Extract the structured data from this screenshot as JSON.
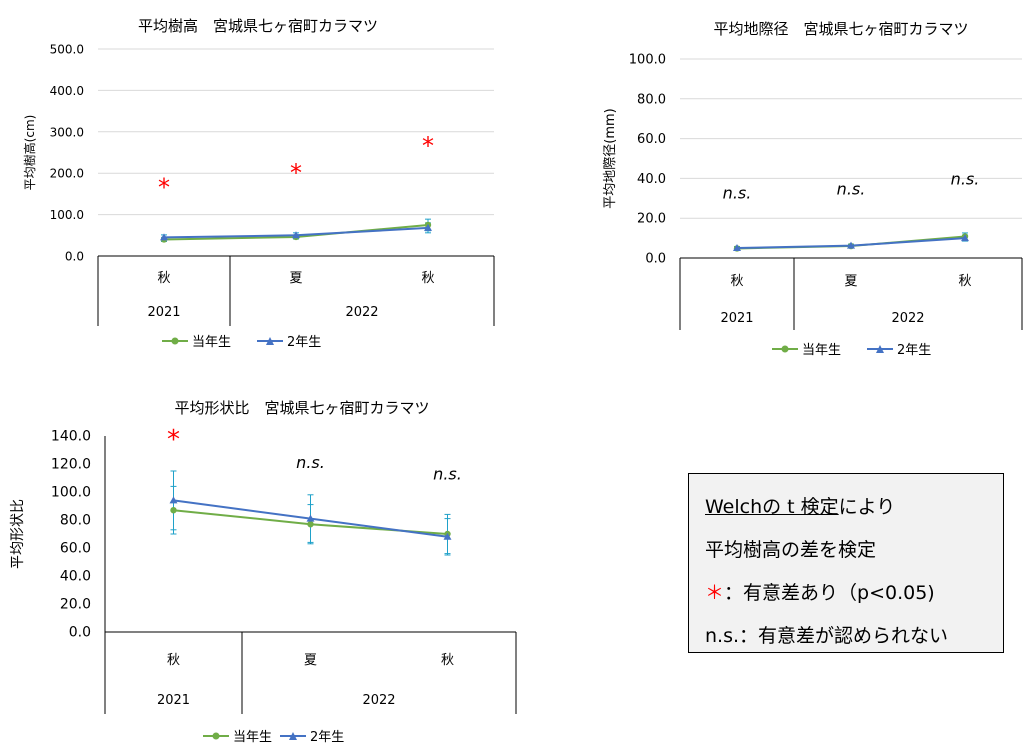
{
  "chart_data": [
    {
      "type": "line",
      "title": "平均樹高　宮城県七ヶ宿町カラマツ",
      "ylabel": "平均樹高(cm)",
      "ylim": [
        0,
        500
      ],
      "yticks": [
        "0.0",
        "100.0",
        "200.0",
        "300.0",
        "400.0",
        "500.0"
      ],
      "categories": [
        "秋",
        "夏",
        "秋"
      ],
      "year_groups": [
        {
          "label": "2021",
          "span": 1
        },
        {
          "label": "2022",
          "span": 2
        }
      ],
      "series": [
        {
          "name": "当年生",
          "color": "#70ad47",
          "marker": "circle",
          "values": [
            40,
            46,
            75
          ],
          "errors": [
            5,
            5,
            14
          ]
        },
        {
          "name": "2年生",
          "color": "#4472c4",
          "marker": "triangle",
          "values": [
            45,
            50,
            68
          ],
          "errors": [
            6,
            6,
            12
          ]
        }
      ],
      "annotations": [
        "*",
        "*",
        "*"
      ],
      "annotation_y": [
        165,
        200,
        266
      ],
      "grid": true,
      "legend": "bottom"
    },
    {
      "type": "line",
      "title": "平均地際径　宮城県七ヶ宿町カラマツ",
      "ylabel": "平均地際径(mm)",
      "ylim": [
        0,
        100
      ],
      "yticks": [
        "0.0",
        "20.0",
        "40.0",
        "60.0",
        "80.0",
        "100.0"
      ],
      "categories": [
        "秋",
        "夏",
        "秋"
      ],
      "year_groups": [
        {
          "label": "2021",
          "span": 1
        },
        {
          "label": "2022",
          "span": 2
        }
      ],
      "series": [
        {
          "name": "当年生",
          "color": "#70ad47",
          "marker": "circle",
          "values": [
            4.8,
            6.0,
            10.8
          ],
          "errors": [
            0.8,
            0.8,
            1.8
          ]
        },
        {
          "name": "2年生",
          "color": "#4472c4",
          "marker": "triangle",
          "values": [
            5.0,
            6.2,
            10.0
          ],
          "errors": [
            0.8,
            0.8,
            1.5
          ]
        }
      ],
      "annotations": [
        "n.s.",
        "n.s.",
        "n.s."
      ],
      "annotation_y": [
        30,
        32,
        37
      ],
      "grid": true,
      "legend": "bottom"
    },
    {
      "type": "line",
      "title": "平均形状比　宮城県七ヶ宿町カラマツ",
      "ylabel": "平均形状比",
      "ylim": [
        0,
        140
      ],
      "yticks": [
        "0.0",
        "20.0",
        "40.0",
        "60.0",
        "80.0",
        "100.0",
        "120.0",
        "140.0"
      ],
      "categories": [
        "秋",
        "夏",
        "秋"
      ],
      "year_groups": [
        {
          "label": "2021",
          "span": 1
        },
        {
          "label": "2022",
          "span": 2
        }
      ],
      "series": [
        {
          "name": "当年生",
          "color": "#70ad47",
          "marker": "circle",
          "values": [
            87,
            77,
            70
          ],
          "errors": [
            17,
            14,
            14
          ]
        },
        {
          "name": "2年生",
          "color": "#4472c4",
          "marker": "triangle",
          "values": [
            94,
            81,
            68
          ],
          "errors": [
            21,
            17,
            13
          ]
        }
      ],
      "annotations": [
        "*",
        "n.s.",
        "n.s."
      ],
      "annotation_y": [
        137,
        117,
        109
      ],
      "grid": false,
      "legend": "bottom"
    }
  ],
  "legend": {
    "series1": "当年生",
    "series2": "2年生"
  },
  "note": {
    "line1_a": "Welchの t 検定",
    "line1_b": "により",
    "line2": "平均樹高の差を検定",
    "line3_star": "＊",
    "line3_text": "：有意差あり（p<0.05)",
    "line4": "n.s.：有意差が認められない"
  },
  "colors": {
    "series1": "#70ad47",
    "series2": "#4472c4",
    "errorbar": "#1fa1c9",
    "significant": "#ff0000"
  }
}
